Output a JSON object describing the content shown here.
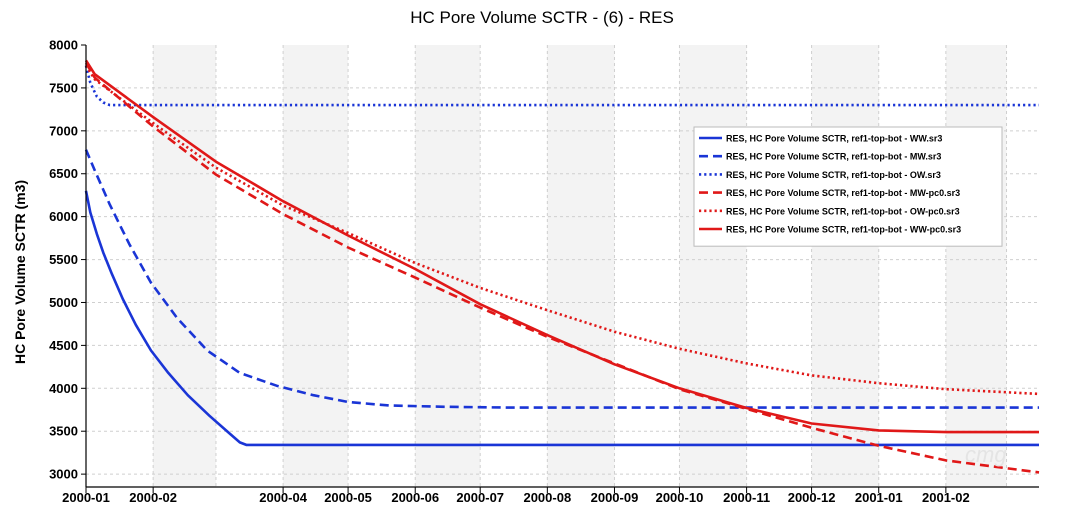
{
  "chart_data": {
    "type": "line",
    "title": "HC Pore Volume SCTR - (6) - RES",
    "xlabel": "",
    "ylabel": "HC Pore Volume SCTR (m3)",
    "x_axis": "date",
    "xlim": [
      "2000-01-01",
      "2001-03-16"
    ],
    "ylim": [
      2850,
      8000
    ],
    "y_ticks": [
      3000,
      3500,
      4000,
      4500,
      5000,
      5500,
      6000,
      6500,
      7000,
      7500,
      8000
    ],
    "x_ticks": [
      {
        "date": "2000-01-01",
        "label": "2000-01"
      },
      {
        "date": "2000-02-01",
        "label": "2000-02"
      },
      {
        "date": "2000-04-01",
        "label": "2000-04"
      },
      {
        "date": "2000-05-01",
        "label": "2000-05"
      },
      {
        "date": "2000-06-01",
        "label": "2000-06"
      },
      {
        "date": "2000-07-01",
        "label": "2000-07"
      },
      {
        "date": "2000-08-01",
        "label": "2000-08"
      },
      {
        "date": "2000-09-01",
        "label": "2000-09"
      },
      {
        "date": "2000-10-01",
        "label": "2000-10"
      },
      {
        "date": "2000-11-01",
        "label": "2000-11"
      },
      {
        "date": "2000-12-01",
        "label": "2000-12"
      },
      {
        "date": "2001-01-01",
        "label": "2001-01"
      },
      {
        "date": "2001-02-01",
        "label": "2001-02"
      }
    ],
    "grid": true,
    "legend_position": "right",
    "series": [
      {
        "name": "RES, HC Pore Volume SCTR, ref1-top-bot - WW.sr3",
        "color": "#1a35d6",
        "dash": "solid",
        "points": [
          [
            "2000-01-01",
            6300
          ],
          [
            "2000-01-03",
            6050
          ],
          [
            "2000-01-06",
            5800
          ],
          [
            "2000-01-09",
            5580
          ],
          [
            "2000-01-13",
            5330
          ],
          [
            "2000-01-18",
            5040
          ],
          [
            "2000-01-24",
            4740
          ],
          [
            "2000-01-31",
            4440
          ],
          [
            "2000-02-08",
            4180
          ],
          [
            "2000-02-17",
            3920
          ],
          [
            "2000-02-27",
            3680
          ],
          [
            "2000-03-07",
            3480
          ],
          [
            "2000-03-12",
            3370
          ],
          [
            "2000-03-15",
            3340
          ],
          [
            "2001-03-16",
            3340
          ]
        ]
      },
      {
        "name": "RES, HC Pore Volume SCTR, ref1-top-bot - MW.sr3",
        "color": "#1a35d6",
        "dash": "dashed",
        "points": [
          [
            "2000-01-01",
            6780
          ],
          [
            "2000-01-05",
            6540
          ],
          [
            "2000-01-12",
            6140
          ],
          [
            "2000-01-21",
            5680
          ],
          [
            "2000-01-31",
            5230
          ],
          [
            "2000-02-12",
            4820
          ],
          [
            "2000-02-26",
            4440
          ],
          [
            "2000-03-12",
            4180
          ],
          [
            "2000-03-29",
            4030
          ],
          [
            "2000-04-15",
            3920
          ],
          [
            "2000-05-01",
            3840
          ],
          [
            "2000-05-20",
            3800
          ],
          [
            "2000-06-15",
            3785
          ],
          [
            "2000-07-15",
            3775
          ],
          [
            "2001-03-16",
            3775
          ]
        ]
      },
      {
        "name": "RES, HC Pore Volume SCTR, ref1-top-bot - OW.sr3",
        "color": "#1a35d6",
        "dash": "dotted",
        "points": [
          [
            "2000-01-01",
            7760
          ],
          [
            "2000-01-03",
            7560
          ],
          [
            "2000-01-06",
            7400
          ],
          [
            "2000-01-09",
            7330
          ],
          [
            "2000-01-12",
            7300
          ],
          [
            "2001-03-16",
            7300
          ]
        ]
      },
      {
        "name": "RES, HC Pore Volume SCTR, ref1-top-bot - MW-pc0.sr3",
        "color": "#e01818",
        "dash": "dashed",
        "points": [
          [
            "2000-01-01",
            7790
          ],
          [
            "2000-01-05",
            7620
          ],
          [
            "2000-02-01",
            7050
          ],
          [
            "2000-03-01",
            6490
          ],
          [
            "2000-04-01",
            6030
          ],
          [
            "2000-05-01",
            5640
          ],
          [
            "2000-06-01",
            5290
          ],
          [
            "2000-07-01",
            4940
          ],
          [
            "2000-08-01",
            4600
          ],
          [
            "2000-09-01",
            4290
          ],
          [
            "2000-10-01",
            3990
          ],
          [
            "2000-11-01",
            3760
          ],
          [
            "2000-12-01",
            3540
          ],
          [
            "2001-01-01",
            3330
          ],
          [
            "2001-02-01",
            3160
          ],
          [
            "2001-03-16",
            3020
          ]
        ]
      },
      {
        "name": "RES, HC Pore Volume SCTR, ref1-top-bot - OW-pc0.sr3",
        "color": "#e01818",
        "dash": "dotted",
        "points": [
          [
            "2000-01-01",
            7760
          ],
          [
            "2000-01-05",
            7600
          ],
          [
            "2000-02-01",
            7090
          ],
          [
            "2000-03-01",
            6570
          ],
          [
            "2000-04-01",
            6130
          ],
          [
            "2000-05-01",
            5810
          ],
          [
            "2000-06-01",
            5460
          ],
          [
            "2000-07-01",
            5170
          ],
          [
            "2000-08-01",
            4910
          ],
          [
            "2000-09-01",
            4660
          ],
          [
            "2000-10-01",
            4460
          ],
          [
            "2000-11-01",
            4290
          ],
          [
            "2000-12-01",
            4150
          ],
          [
            "2001-01-01",
            4060
          ],
          [
            "2001-02-01",
            3990
          ],
          [
            "2001-03-16",
            3935
          ]
        ]
      },
      {
        "name": "RES, HC Pore Volume SCTR, ref1-top-bot - WW-pc0.sr3",
        "color": "#e01818",
        "dash": "solid",
        "points": [
          [
            "2000-01-01",
            7820
          ],
          [
            "2000-01-05",
            7660
          ],
          [
            "2000-02-01",
            7160
          ],
          [
            "2000-03-01",
            6640
          ],
          [
            "2000-04-01",
            6180
          ],
          [
            "2000-05-01",
            5780
          ],
          [
            "2000-06-01",
            5390
          ],
          [
            "2000-07-01",
            4980
          ],
          [
            "2000-08-01",
            4620
          ],
          [
            "2000-09-01",
            4280
          ],
          [
            "2000-10-01",
            4000
          ],
          [
            "2000-11-01",
            3770
          ],
          [
            "2000-12-01",
            3590
          ],
          [
            "2001-01-01",
            3510
          ],
          [
            "2001-02-01",
            3490
          ],
          [
            "2001-03-16",
            3490
          ]
        ]
      }
    ]
  }
}
